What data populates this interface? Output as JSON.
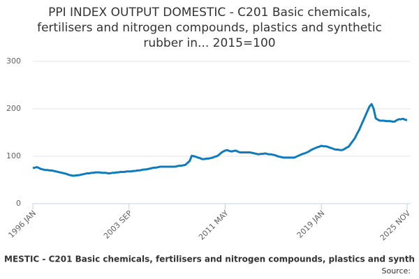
{
  "chart_data": {
    "type": "line",
    "title": [
      "PPI INDEX OUTPUT DOMESTIC - C201 Basic chemicals,",
      "fertilisers and nitrogen compounds, plastics and synthetic",
      "rubber in... 2015=100"
    ],
    "categories": [
      "1996 JAN",
      null,
      null,
      null,
      null,
      null,
      null,
      null,
      null,
      null,
      null,
      null,
      null,
      null,
      null,
      null,
      null,
      null,
      null,
      null,
      null,
      null,
      null,
      null,
      null,
      null,
      null,
      null,
      null,
      null,
      null,
      null,
      null,
      null,
      null,
      null,
      null,
      null,
      null,
      null,
      null,
      null,
      null,
      null,
      null,
      null,
      "2003 SEP",
      null,
      null,
      null,
      null,
      null,
      null,
      null,
      null,
      null,
      null,
      null,
      null,
      null,
      null,
      null,
      null,
      null,
      null,
      null,
      null,
      null,
      null,
      null,
      null,
      null,
      null,
      null,
      null,
      null,
      null,
      null,
      null,
      null,
      null,
      null,
      null,
      null,
      null,
      null,
      null,
      null,
      null,
      null,
      null,
      null,
      "2011 MAY",
      null,
      null,
      null,
      null,
      null,
      null,
      null,
      null,
      null,
      null,
      null,
      null,
      null,
      null,
      null,
      null,
      null,
      null,
      null,
      null,
      null,
      null,
      null,
      null,
      null,
      null,
      null,
      null,
      null,
      null,
      null,
      null,
      null,
      null,
      null,
      null,
      null,
      null,
      null,
      null,
      null,
      null,
      null,
      null,
      null,
      "2019 JAN",
      null,
      null,
      null,
      null,
      null,
      null,
      null,
      null,
      null,
      null,
      null,
      null,
      null,
      null,
      null,
      null,
      null,
      null,
      null,
      null,
      null,
      null,
      null,
      null,
      null,
      null,
      null,
      null,
      null,
      null,
      null,
      null,
      null,
      null,
      null,
      null,
      null,
      null,
      null,
      null,
      "2025 NOV"
    ],
    "series": [
      {
        "name": "MESTIC - C201 Basic chemicals, fertilisers and nitrogen compounds, plastics and synth",
        "color": "#0f7bbd",
        "values": [
          75,
          76,
          77,
          75,
          73,
          72,
          71,
          71,
          70,
          70,
          69,
          68,
          67,
          66,
          65,
          64,
          63,
          61,
          60,
          59,
          59,
          60,
          60,
          61,
          62,
          63,
          64,
          64,
          65,
          65,
          66,
          66,
          66,
          65,
          65,
          65,
          64,
          64,
          65,
          65,
          66,
          66,
          67,
          67,
          67,
          68,
          68,
          68,
          69,
          69,
          70,
          70,
          71,
          72,
          72,
          73,
          74,
          75,
          76,
          76,
          77,
          78,
          78,
          78,
          78,
          78,
          78,
          78,
          78,
          79,
          80,
          80,
          81,
          82,
          86,
          90,
          101,
          100,
          99,
          97,
          96,
          94,
          94,
          95,
          95,
          96,
          97,
          99,
          100,
          103,
          107,
          110,
          112,
          113,
          111,
          110,
          111,
          112,
          110,
          108,
          108,
          108,
          108,
          108,
          108,
          107,
          106,
          105,
          104,
          105,
          105,
          106,
          105,
          104,
          104,
          103,
          102,
          100,
          99,
          98,
          97,
          97,
          97,
          97,
          97,
          97,
          99,
          101,
          103,
          105,
          106,
          108,
          110,
          113,
          115,
          117,
          119,
          120,
          122,
          121,
          121,
          120,
          118,
          117,
          115,
          114,
          114,
          113,
          113,
          115,
          118,
          120,
          126,
          132,
          138,
          147,
          155,
          165,
          175,
          185,
          195,
          205,
          210,
          200,
          180,
          177,
          175,
          175,
          175,
          174,
          174,
          174,
          173,
          173,
          176,
          178,
          178,
          179,
          177,
          176
        ]
      }
    ],
    "ylim": [
      0,
      300
    ],
    "yticks": [
      0,
      100,
      200,
      300
    ],
    "grid": true,
    "source": "Source:"
  }
}
